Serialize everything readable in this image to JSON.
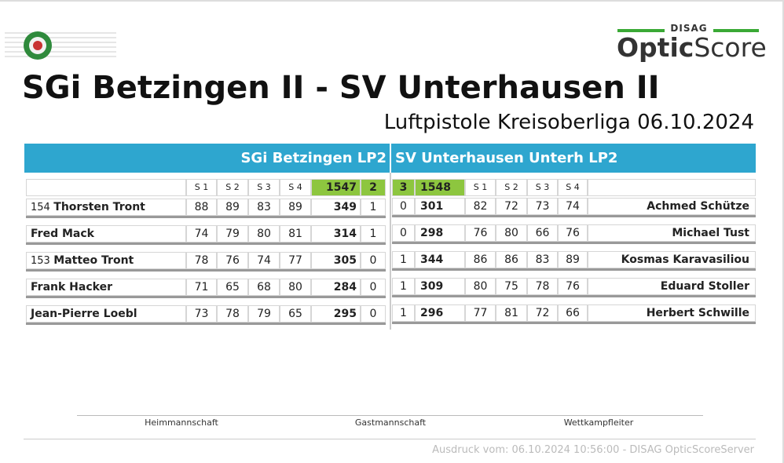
{
  "header": {
    "brand_top": "DISAG",
    "brand_optic": "Optic",
    "brand_score": "Score",
    "title": "SGi Betzingen II - SV Unterhausen II",
    "subtitle": "Luftpistole Kreisoberliga 06.10.2024"
  },
  "teams": {
    "home": "SGi Betzingen LP2",
    "away": "SV Unterhausen Unterh LP2"
  },
  "columns": {
    "home_series": [
      "S 1",
      "S 2",
      "S 3",
      "S 4"
    ],
    "home_total": 1547,
    "home_points": 2,
    "away_points": 3,
    "away_total": 1548,
    "away_series": [
      "S 1",
      "S 2",
      "S 3",
      "S 4"
    ]
  },
  "rows": [
    {
      "home": {
        "number": "154",
        "name": "Thorsten Tront",
        "series": [
          88,
          89,
          83,
          89
        ],
        "total": 349,
        "points": 1
      },
      "away": {
        "name": "Achmed Schütze",
        "series": [
          82,
          72,
          73,
          74
        ],
        "total": 301,
        "points": 0
      }
    },
    {
      "home": {
        "name": "Fred Mack",
        "series": [
          74,
          79,
          80,
          81
        ],
        "total": 314,
        "points": 1
      },
      "away": {
        "name": "Michael Tust",
        "series": [
          76,
          80,
          66,
          76
        ],
        "total": 298,
        "points": 0
      }
    },
    {
      "home": {
        "number": "153",
        "name": "Matteo Tront",
        "series": [
          78,
          76,
          74,
          77
        ],
        "total": 305,
        "points": 0
      },
      "away": {
        "name": "Kosmas Karavasiliou",
        "series": [
          86,
          86,
          83,
          89
        ],
        "total": 344,
        "points": 1
      }
    },
    {
      "home": {
        "name": "Frank Hacker",
        "series": [
          71,
          65,
          68,
          80
        ],
        "total": 284,
        "points": 0
      },
      "away": {
        "name": "Eduard Stoller",
        "series": [
          80,
          75,
          78,
          76
        ],
        "total": 309,
        "points": 1
      }
    },
    {
      "home": {
        "name": "Jean-Pierre Loebl",
        "series": [
          73,
          78,
          79,
          65
        ],
        "total": 295,
        "points": 0
      },
      "away": {
        "name": "Herbert Schwille",
        "series": [
          77,
          81,
          72,
          66
        ],
        "total": 296,
        "points": 1
      }
    }
  ],
  "signatures": [
    "Heimmannschaft",
    "Gastmannschaft",
    "Wettkampfleiter"
  ],
  "footer": "Ausdruck vom: 06.10.2024 10:56:00 - DISAG OpticScoreServer"
}
